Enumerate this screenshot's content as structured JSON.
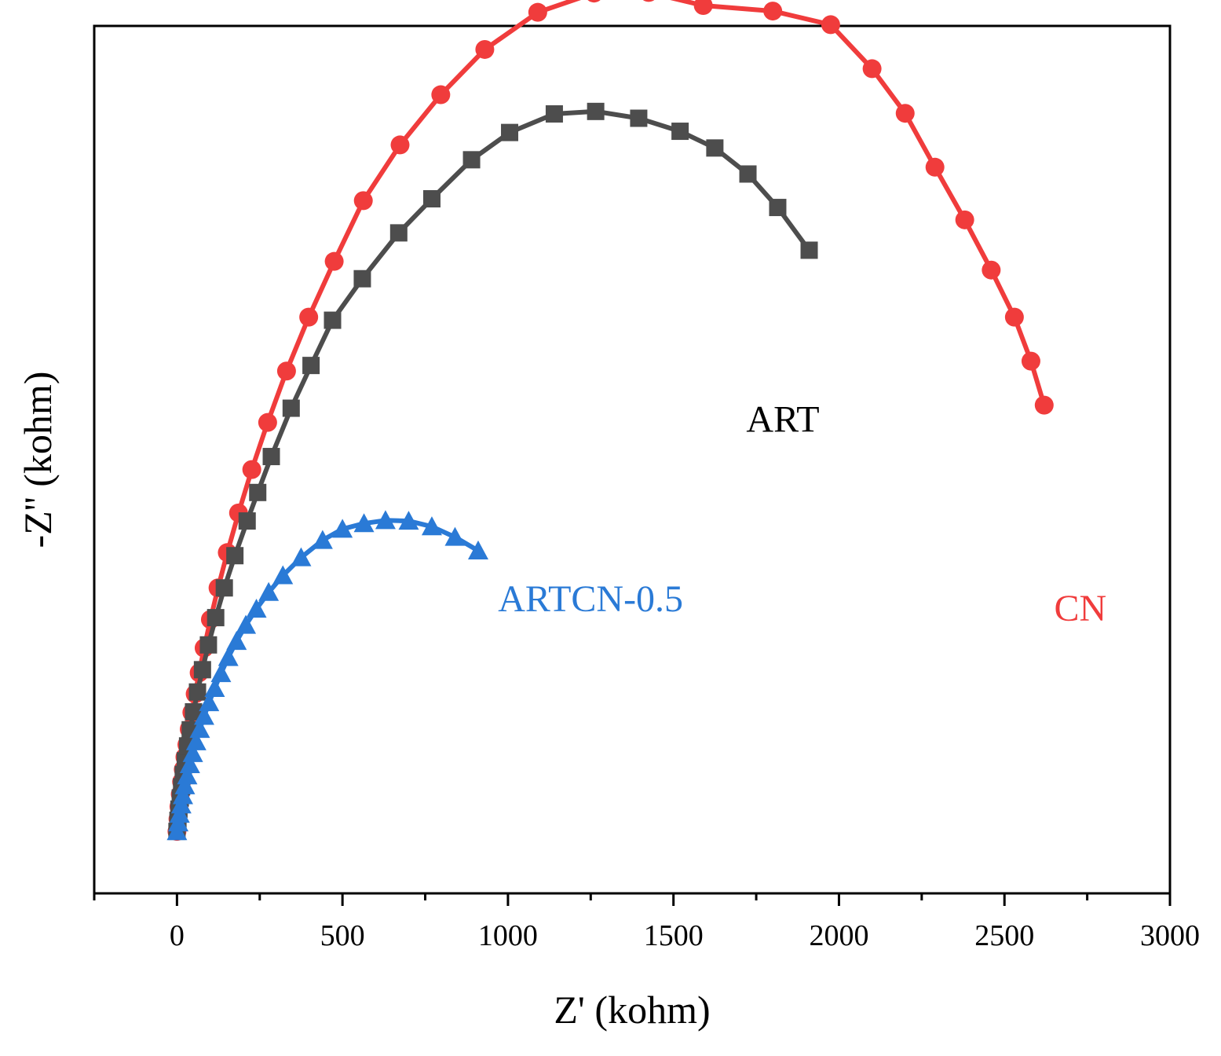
{
  "chart_data": {
    "type": "scatter",
    "title": "",
    "xlabel": "Z' (kohm)",
    "ylabel": "-Z'' (kohm)",
    "xlim": [
      -250,
      3000
    ],
    "ylim": [
      -100,
      1300
    ],
    "x_ticks": [
      0,
      500,
      1000,
      1500,
      2000,
      2500,
      3000
    ],
    "x_tick_labels": [
      "0",
      "500",
      "1000",
      "1500",
      "2000",
      "2500",
      "3000"
    ],
    "y_tick_labels_visible": false,
    "series": [
      {
        "name": "CN",
        "label": "CN",
        "color": "#f03c3c",
        "marker": "circle",
        "label_anchor": [
          2650,
          340
        ],
        "x": [
          0,
          3,
          6,
          10,
          14,
          19,
          24,
          30,
          37,
          45,
          55,
          67,
          82,
          101,
          124,
          152,
          186,
          226,
          274,
          331,
          398,
          475,
          563,
          674,
          797,
          930,
          1090,
          1260,
          1425,
          1590,
          1800,
          1975,
          2100,
          2200,
          2290,
          2380,
          2460,
          2530,
          2580,
          2620
        ],
        "y": [
          0,
          20,
          40,
          60,
          80,
          100,
          120,
          140,
          165,
          192,
          222,
          256,
          296,
          342,
          393,
          450,
          514,
          584,
          660,
          743,
          830,
          920,
          1018,
          1108,
          1189,
          1262,
          1322,
          1353,
          1354,
          1333,
          1324,
          1302,
          1231,
          1159,
          1072,
          987,
          906,
          830,
          759,
          688
        ]
      },
      {
        "name": "ART",
        "label": "ART",
        "color": "#4d4d4d",
        "marker": "square",
        "label_anchor": [
          1720,
          645
        ],
        "x": [
          0,
          3,
          6,
          10,
          14,
          19,
          25,
          32,
          40,
          50,
          62,
          77,
          95,
          117,
          143,
          175,
          212,
          244,
          285,
          345,
          405,
          470,
          560,
          670,
          770,
          890,
          1005,
          1140,
          1265,
          1395,
          1520,
          1625,
          1725,
          1815,
          1910
        ],
        "y": [
          0,
          18,
          36,
          54,
          72,
          92,
          114,
          138,
          164,
          193,
          225,
          261,
          301,
          345,
          393,
          445,
          501,
          547,
          605,
          683,
          752,
          825,
          892,
          966,
          1021,
          1084,
          1128,
          1158,
          1162,
          1151,
          1130,
          1103,
          1061,
          1007,
          938
        ]
      },
      {
        "name": "ARTCN-0.5",
        "label": "ARTCN-0.5",
        "color": "#2a7ad6",
        "marker": "triangle",
        "label_anchor": [
          970,
          355
        ],
        "x": [
          0,
          4,
          8,
          13,
          18,
          24,
          31,
          39,
          48,
          58,
          69,
          82,
          97,
          114,
          133,
          155,
          180,
          208,
          240,
          277,
          320,
          375,
          440,
          500,
          565,
          630,
          700,
          770,
          840,
          910
        ],
        "y": [
          0,
          14,
          28,
          43,
          58,
          74,
          90,
          108,
          126,
          145,
          165,
          186,
          208,
          231,
          255,
          281,
          307,
          333,
          359,
          386,
          413,
          442,
          470,
          488,
          497,
          502,
          501,
          492,
          475,
          453
        ]
      }
    ]
  }
}
